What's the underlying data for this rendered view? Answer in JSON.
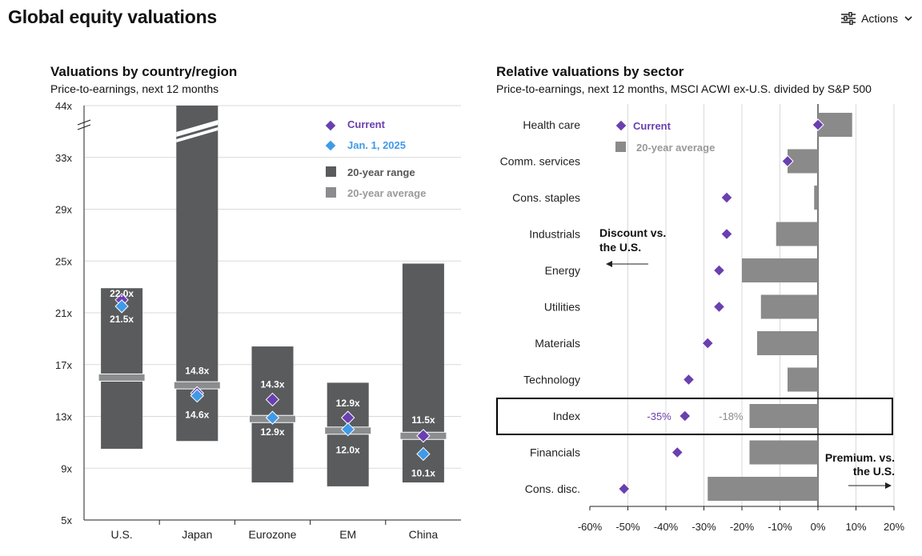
{
  "page": {
    "title": "Global equity valuations",
    "actions_label": "Actions",
    "actions_icon": "sliders-icon",
    "actions_chevron_icon": "chevron-down-icon"
  },
  "colors": {
    "range_bar": "#595b5d",
    "average_marker": "#8a8c8e",
    "current": "#6a3fb0",
    "jan_2025": "#3f9ae8",
    "sector_bar": "#8a8a8a",
    "grid": "#d9d9d9",
    "index_box": "#000000"
  },
  "chart_data": [
    {
      "type": "bar",
      "subtype": "range-with-markers",
      "title": "Valuations by country/region",
      "subtitle": "Price-to-earnings, next 12 months",
      "categories": [
        "U.S.",
        "Japan",
        "Eurozone",
        "EM",
        "China"
      ],
      "y_ticks": [
        "5x",
        "9x",
        "13x",
        "17x",
        "21x",
        "25x",
        "29x",
        "33x",
        "44x"
      ],
      "ylim": [
        5,
        44
      ],
      "axis_break": "between 33x and 44x",
      "grid": true,
      "legend_position": "top-right",
      "legend": {
        "current": "Current",
        "jan": "Jan. 1, 2025",
        "range": "20-year range",
        "average": "20-year average"
      },
      "series": [
        {
          "name": "20-year range",
          "low": [
            10.5,
            11.1,
            7.9,
            7.6,
            7.9
          ],
          "high": [
            22.9,
            44,
            18.4,
            15.6,
            24.8
          ]
        },
        {
          "name": "20-year average",
          "values": [
            16.0,
            15.4,
            12.8,
            11.9,
            11.5
          ]
        },
        {
          "name": "Current",
          "values": [
            22.0,
            14.8,
            14.3,
            12.9,
            11.5
          ]
        },
        {
          "name": "Jan. 1, 2025",
          "values": [
            21.5,
            14.6,
            12.9,
            12.0,
            10.1
          ]
        }
      ],
      "labels": {
        "current": [
          "22.0x",
          "14.8x",
          "14.3x",
          "12.9x",
          "11.5x"
        ],
        "jan": [
          "21.5x",
          "14.6x",
          "12.9x",
          "12.0x",
          "10.1x"
        ]
      }
    },
    {
      "type": "bar",
      "orientation": "horizontal",
      "title": "Relative valuations by sector",
      "subtitle": "Price-to-earnings, next 12 months, MSCI ACWI ex-U.S. divided by S&P 500",
      "categories": [
        "Health care",
        "Comm. services",
        "Cons. staples",
        "Industrials",
        "Energy",
        "Utilities",
        "Materials",
        "Technology",
        "Index",
        "Financials",
        "Cons. disc."
      ],
      "x_ticks": [
        "-60%",
        "-50%",
        "-40%",
        "-30%",
        "-20%",
        "-10%",
        "0%",
        "10%",
        "20%"
      ],
      "xlim": [
        -60,
        20
      ],
      "grid": true,
      "legend_position": "top-left",
      "legend": {
        "current": "Current",
        "average": "20-year average"
      },
      "series": [
        {
          "name": "20-year average",
          "values": [
            9,
            -8,
            -1,
            -11,
            -20,
            -15,
            -16,
            -8,
            -18,
            -18,
            -29
          ]
        },
        {
          "name": "Current",
          "values": [
            0,
            -8,
            -24,
            -24,
            -26,
            -26,
            -29,
            -34,
            -35,
            -37,
            -51
          ]
        }
      ],
      "highlight": {
        "category": "Index",
        "current_label": "-35%",
        "average_label": "-18%"
      },
      "annotations": {
        "discount": [
          "Discount vs.",
          "the U.S."
        ],
        "premium": [
          "Premium. vs.",
          "the U.S."
        ]
      }
    }
  ]
}
